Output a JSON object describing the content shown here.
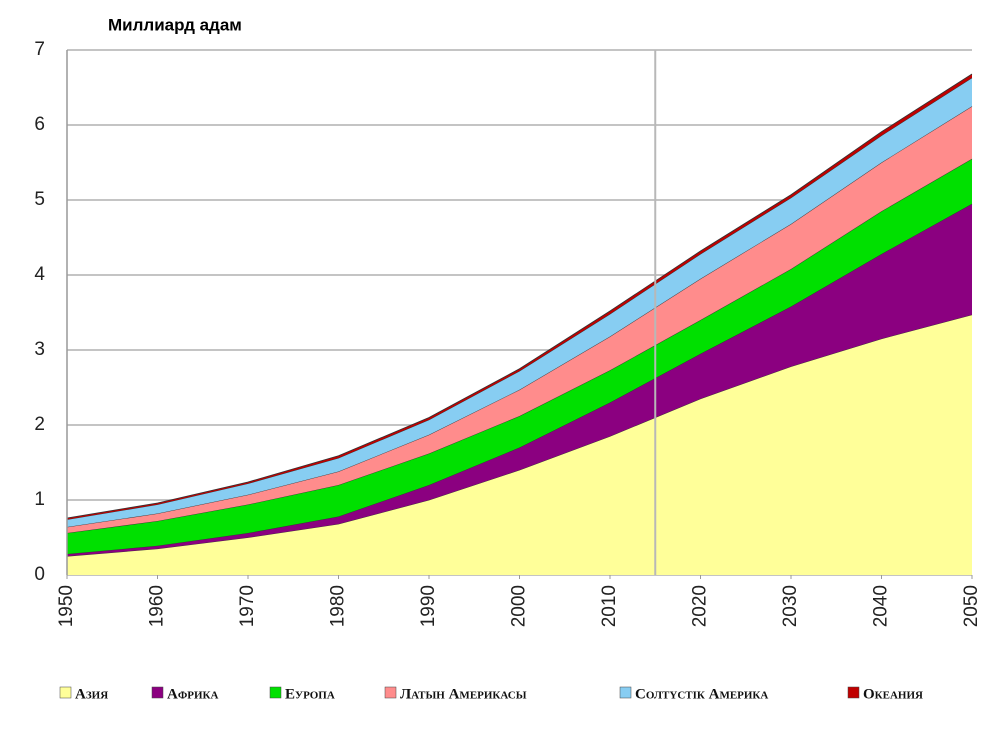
{
  "chart_data": {
    "type": "stacked-area",
    "y_label": "Миллиард адам",
    "x": [
      1950,
      1960,
      1970,
      1980,
      1990,
      2000,
      2010,
      2020,
      2030,
      2040,
      2050
    ],
    "xlim": [
      1950,
      2050
    ],
    "xticks": [
      1950,
      1960,
      1970,
      1980,
      1990,
      2000,
      2010,
      2020,
      2030,
      2040,
      2050
    ],
    "ylim": [
      0,
      7
    ],
    "yticks": [
      0,
      1,
      2,
      3,
      4,
      5,
      6,
      7
    ],
    "grid": true,
    "marker_x": 2015,
    "legend": "bottom",
    "series": [
      {
        "name": "Азия",
        "color": "#ffff99",
        "values": [
          0.25,
          0.35,
          0.5,
          0.68,
          1.0,
          1.4,
          1.85,
          2.35,
          2.78,
          3.15,
          3.47
        ]
      },
      {
        "name": "Африка",
        "color": "#8b0080",
        "values": [
          0.03,
          0.04,
          0.06,
          0.1,
          0.2,
          0.3,
          0.45,
          0.6,
          0.8,
          1.13,
          1.48
        ]
      },
      {
        "name": "Еуропа",
        "color": "#00e000",
        "values": [
          0.28,
          0.33,
          0.38,
          0.42,
          0.42,
          0.42,
          0.43,
          0.45,
          0.5,
          0.57,
          0.6
        ]
      },
      {
        "name": "Латын Америкасы",
        "color": "#ff8c8c",
        "values": [
          0.08,
          0.1,
          0.13,
          0.18,
          0.25,
          0.35,
          0.45,
          0.55,
          0.6,
          0.65,
          0.7
        ]
      },
      {
        "name": "Солтүстік Америка",
        "color": "#87cdf2",
        "values": [
          0.1,
          0.12,
          0.15,
          0.18,
          0.2,
          0.25,
          0.3,
          0.33,
          0.35,
          0.36,
          0.38
        ]
      },
      {
        "name": "Океания",
        "color": "#c00000",
        "values": [
          0.02,
          0.02,
          0.02,
          0.03,
          0.03,
          0.03,
          0.04,
          0.04,
          0.04,
          0.05,
          0.05
        ]
      }
    ]
  }
}
